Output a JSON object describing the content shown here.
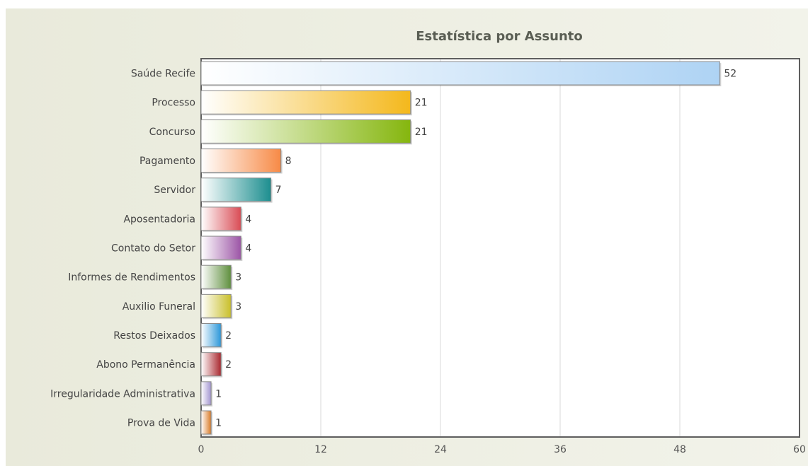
{
  "chart_data": {
    "type": "bar",
    "orientation": "horizontal",
    "title": "Estatística por Assunto",
    "categories": [
      "Saúde Recife",
      "Processo",
      "Concurso",
      "Pagamento",
      "Servidor",
      "Aposentadoria",
      "Contato do Setor",
      "Informes de Rendimentos",
      "Auxilio Funeral",
      "Restos Deixados",
      "Abono Permanência",
      "Irregularidade Administrativa",
      "Prova de Vida"
    ],
    "values": [
      52,
      21,
      21,
      8,
      7,
      4,
      4,
      3,
      3,
      2,
      2,
      1,
      1
    ],
    "xlim": [
      0,
      60
    ],
    "xticks": [
      0,
      12,
      24,
      36,
      48,
      60
    ],
    "grid": true,
    "colors": [
      "#aed3f4",
      "#f4b81c",
      "#85b60e",
      "#f78a46",
      "#1c8e8f",
      "#d94c55",
      "#9c55a6",
      "#5f8f3e",
      "#c9bf2a",
      "#2b97d9",
      "#a9282f",
      "#a294d0",
      "#d97a28"
    ]
  }
}
